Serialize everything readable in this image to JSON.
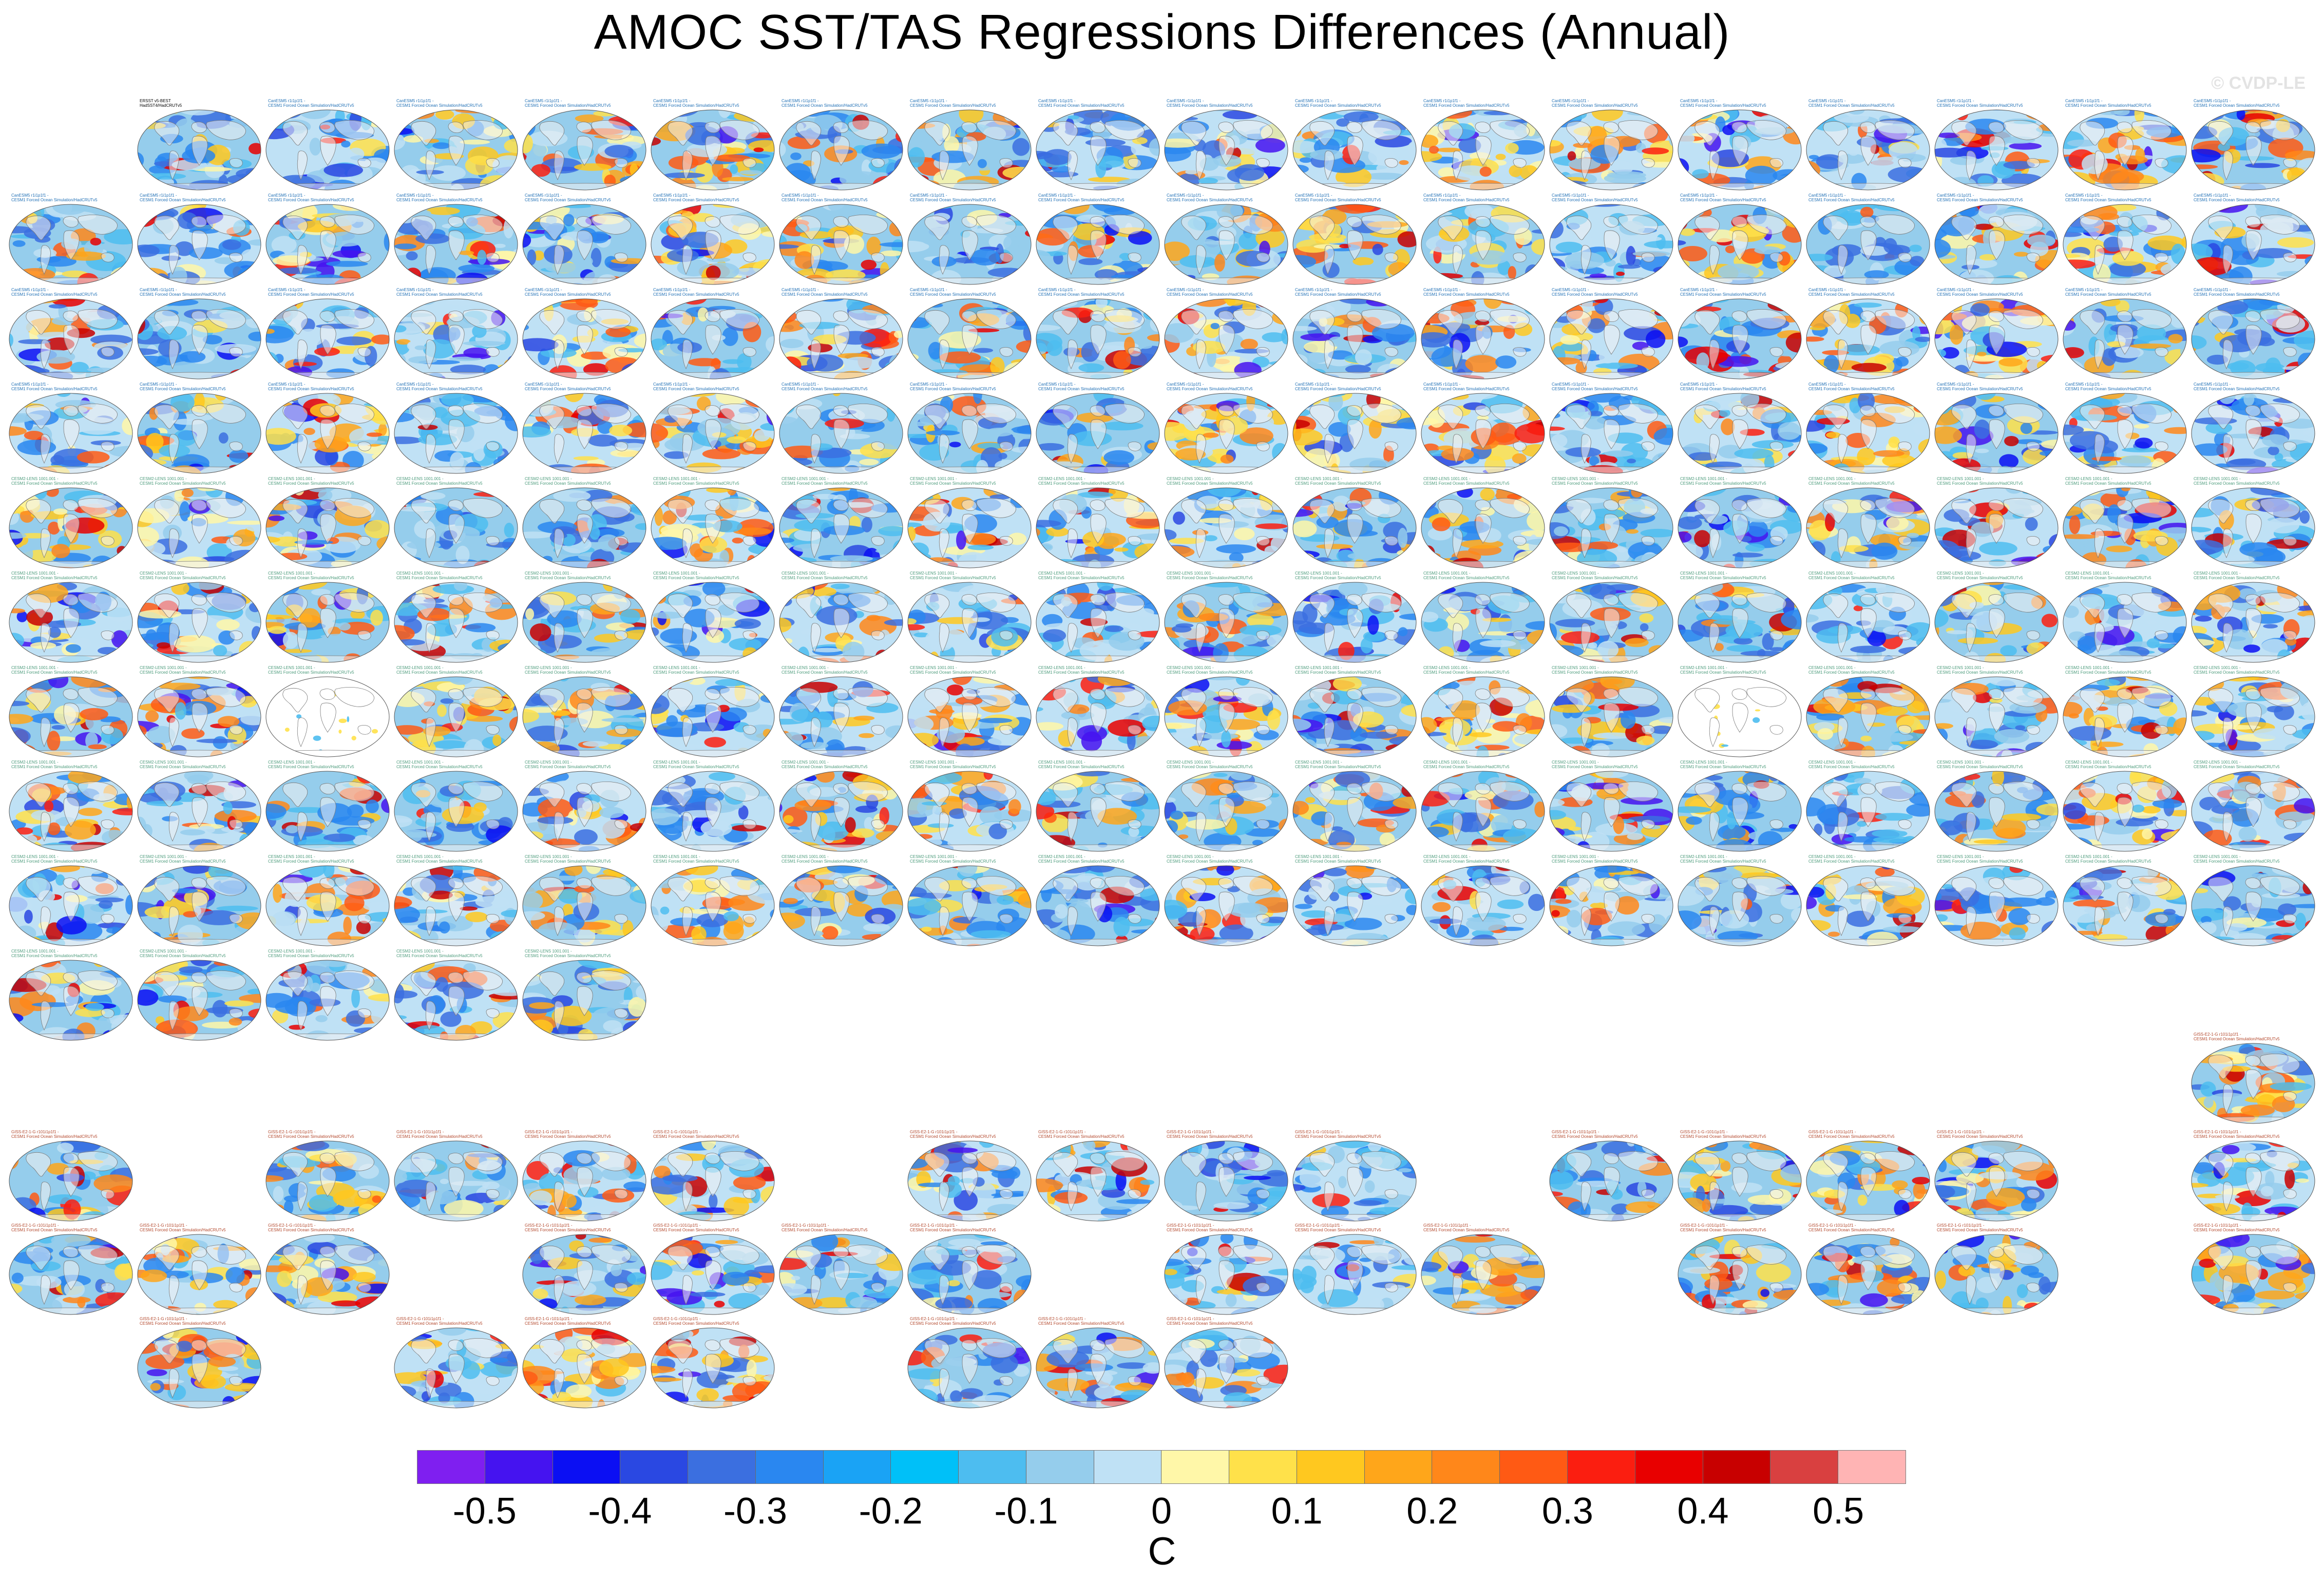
{
  "title": "AMOC SST/TAS Regressions Differences (Annual)",
  "copyright": "© CVDP-LE",
  "units": "C",
  "colorbar": {
    "ticks": [
      "-0.5",
      "-0.4",
      "-0.3",
      "-0.2",
      "-0.1",
      "0",
      "0.1",
      "0.2",
      "0.3",
      "0.4",
      "0.5"
    ],
    "colors": [
      "#7f1ff0",
      "#4513f0",
      "#0b0ff3",
      "#2a48e2",
      "#3b6fe0",
      "#2a87f0",
      "#1aa3f5",
      "#00c0f8",
      "#4dbdf0",
      "#95cdec",
      "#bfe1f5",
      "#fff7a8",
      "#ffe14a",
      "#ffc81f",
      "#ffa61a",
      "#ff871a",
      "#ff5a14",
      "#fb1e10",
      "#e80000",
      "#c80000",
      "#d94040",
      "#ffb4b4"
    ]
  },
  "panels": [
    {
      "group": "obs",
      "label": "ERSST v5-BEST\nHadSST4/HadCRUTv5"
    },
    {
      "group": "cesm2",
      "label": "CanESM5 r1i1p1f1 -\nCESM1 Forced Ocean Simulation/HadCRUTv5"
    },
    {
      "group": "lens",
      "label": "CESM2-LENS 1001.001 -\nCESM1 Forced Ocean Simulation/HadCRUTv5"
    },
    {
      "group": "gfdl",
      "label": "GISS-E2-1-G r101i1p1f1 -\nCESM1 Forced Ocean Simulation/HadCRUTv5"
    }
  ]
}
